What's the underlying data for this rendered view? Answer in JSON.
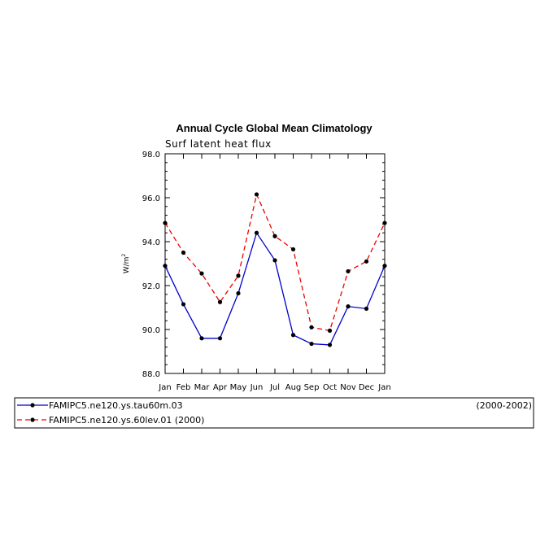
{
  "chart_data": {
    "type": "line",
    "title": "Annual Cycle Global Mean Climatology",
    "subtitle": "Surf latent heat flux",
    "ylabel": "W/m",
    "ylabel_superscript": "2",
    "xlabel": "",
    "ylim": [
      88.0,
      98.0
    ],
    "yticks": [
      "88.0",
      "90.0",
      "92.0",
      "94.0",
      "96.0",
      "98.0"
    ],
    "categories": [
      "Jan",
      "Feb",
      "Mar",
      "Apr",
      "May",
      "Jun",
      "Jul",
      "Aug",
      "Sep",
      "Oct",
      "Nov",
      "Dec",
      "Jan"
    ],
    "grid": false,
    "legend_position": "bottom",
    "series": [
      {
        "name": "FAMIPC5.ne120.ys.tau60m.03",
        "period": "(2000-2002)",
        "color": "#0000cc",
        "dash": "solid",
        "values": [
          92.9,
          91.15,
          89.6,
          89.6,
          91.65,
          94.4,
          93.15,
          89.75,
          89.35,
          89.3,
          91.05,
          90.95,
          92.9
        ]
      },
      {
        "name": "FAMIPC5.ne120.ys.60lev.01 (2000)",
        "period": "",
        "color": "#ee0000",
        "dash": "dashed",
        "values": [
          94.85,
          93.5,
          92.55,
          91.25,
          92.45,
          96.15,
          94.25,
          93.65,
          90.1,
          89.95,
          92.65,
          93.1,
          94.85
        ]
      }
    ]
  }
}
